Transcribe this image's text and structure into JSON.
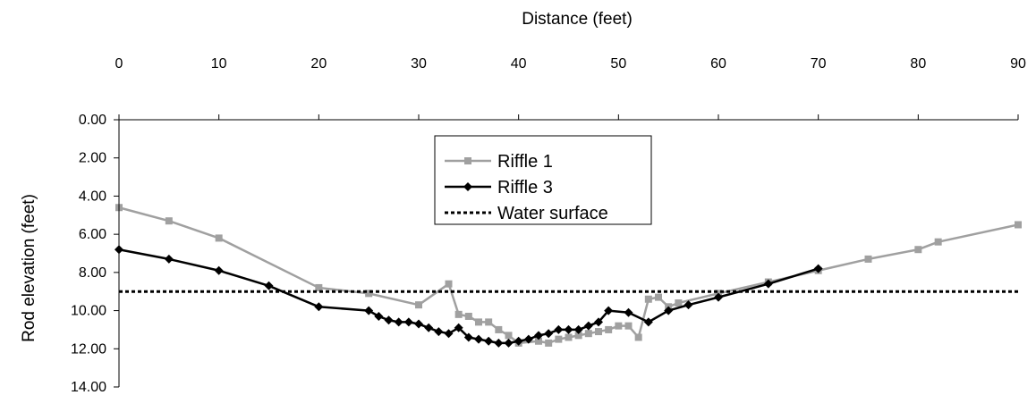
{
  "chart_data": {
    "type": "line",
    "xlabel": "Distance (feet)",
    "ylabel": "Rod elevation (feet)",
    "xlim": [
      0,
      90
    ],
    "ylim": [
      0,
      14
    ],
    "y_inverted": true,
    "x_axis_position": "top",
    "x_ticks": [
      "0",
      "10",
      "20",
      "30",
      "40",
      "50",
      "60",
      "70",
      "80",
      "90"
    ],
    "y_ticks": [
      "0.00",
      "2.00",
      "4.00",
      "6.00",
      "8.00",
      "10.00",
      "12.00",
      "14.00"
    ],
    "grid": false,
    "legend_position": "center-top",
    "series": [
      {
        "name": "Riffle 1",
        "color": "#a0a0a0",
        "marker": "square",
        "x": [
          0,
          5,
          10,
          20,
          25,
          30,
          33,
          34,
          35,
          36,
          37,
          38,
          39,
          40,
          42,
          43,
          44,
          45,
          46,
          47,
          48,
          49,
          50,
          51,
          52,
          53,
          54,
          55,
          56,
          60,
          65,
          70,
          75,
          80,
          82,
          90
        ],
        "y": [
          4.6,
          5.3,
          6.2,
          8.8,
          9.1,
          9.7,
          8.6,
          10.2,
          10.3,
          10.6,
          10.6,
          11.0,
          11.3,
          11.7,
          11.6,
          11.7,
          11.5,
          11.4,
          11.3,
          11.2,
          11.1,
          11.0,
          10.8,
          10.8,
          11.4,
          9.4,
          9.3,
          9.8,
          9.6,
          9.1,
          8.5,
          7.9,
          7.3,
          6.8,
          6.4,
          5.5
        ]
      },
      {
        "name": "Riffle 3",
        "color": "#000000",
        "marker": "diamond",
        "x": [
          0,
          5,
          10,
          15,
          20,
          25,
          26,
          27,
          28,
          29,
          30,
          31,
          32,
          33,
          34,
          35,
          36,
          37,
          38,
          39,
          40,
          41,
          42,
          43,
          44,
          45,
          46,
          47,
          48,
          49,
          51,
          53,
          55,
          57,
          60,
          65,
          70
        ],
        "y": [
          6.8,
          7.3,
          7.9,
          8.7,
          9.8,
          10.0,
          10.3,
          10.5,
          10.6,
          10.6,
          10.7,
          10.9,
          11.1,
          11.2,
          10.9,
          11.4,
          11.5,
          11.6,
          11.7,
          11.7,
          11.6,
          11.5,
          11.3,
          11.2,
          11.0,
          11.0,
          11.0,
          10.8,
          10.6,
          10.0,
          10.1,
          10.6,
          10.0,
          9.7,
          9.3,
          8.6,
          7.8
        ]
      },
      {
        "name": "Water surface",
        "color": "#000000",
        "marker": "none",
        "dashed": true,
        "x": [
          0,
          90
        ],
        "y": [
          9.0,
          9.0
        ]
      }
    ]
  }
}
